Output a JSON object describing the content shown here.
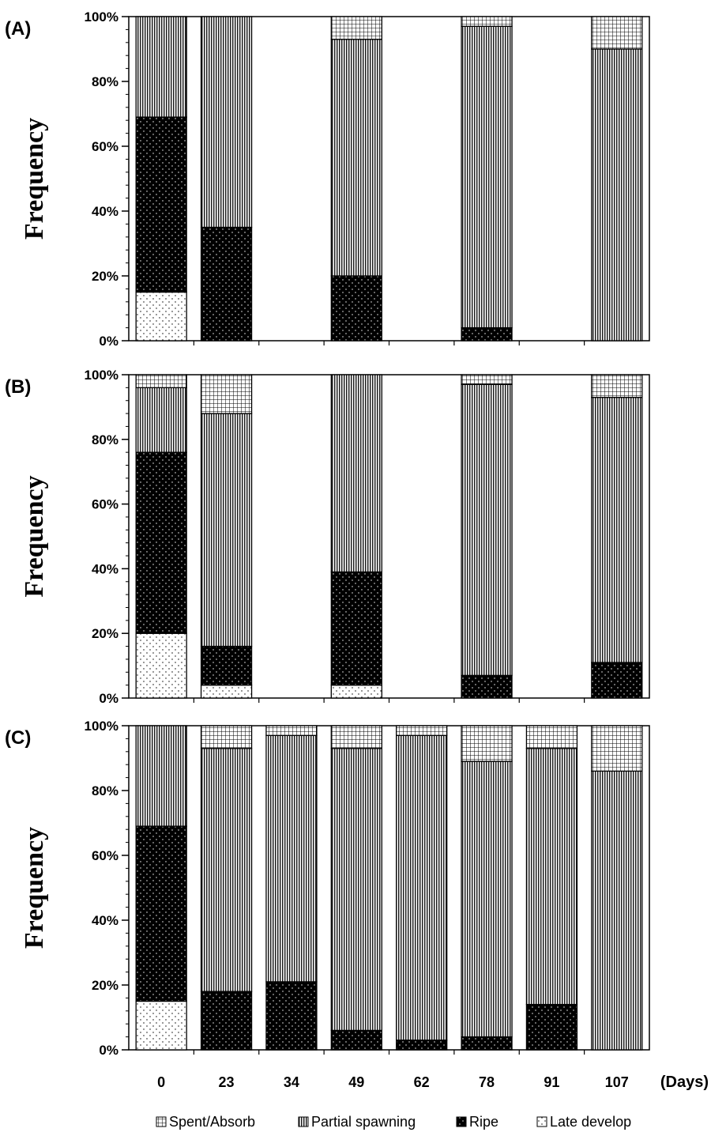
{
  "chart_data": {
    "type": "bar",
    "stacked": true,
    "percent_stacked": true,
    "categories": [
      "0",
      "23",
      "34",
      "49",
      "62",
      "78",
      "91",
      "107"
    ],
    "x_unit_label": "(Days)",
    "ylabel": "Frequency",
    "ylim": [
      0,
      100
    ],
    "y_ticks": [
      "0%",
      "20%",
      "40%",
      "60%",
      "80%",
      "100%"
    ],
    "legend": {
      "position": "bottom",
      "items": [
        {
          "key": "spent",
          "label": "Spent/Absorb",
          "pattern": "grid"
        },
        {
          "key": "partial",
          "label": "Partial spawning",
          "pattern": "vertical-lines"
        },
        {
          "key": "ripe",
          "label": "Ripe",
          "pattern": "black-dots"
        },
        {
          "key": "late",
          "label": "Late develop",
          "pattern": "dots"
        }
      ]
    },
    "panels": [
      {
        "label": "(A)",
        "bars": [
          {
            "day": "0",
            "late": 15,
            "ripe": 54,
            "partial": 31,
            "spent": 0
          },
          {
            "day": "23",
            "late": 0,
            "ripe": 35,
            "partial": 65,
            "spent": 0
          },
          {
            "day": "49",
            "late": 0,
            "ripe": 20,
            "partial": 73,
            "spent": 7
          },
          {
            "day": "78",
            "late": 0,
            "ripe": 4,
            "partial": 93,
            "spent": 3
          },
          {
            "day": "107",
            "late": 0,
            "ripe": 0,
            "partial": 90,
            "spent": 10
          }
        ]
      },
      {
        "label": "(B)",
        "bars": [
          {
            "day": "0",
            "late": 20,
            "ripe": 56,
            "partial": 20,
            "spent": 4
          },
          {
            "day": "23",
            "late": 4,
            "ripe": 12,
            "partial": 72,
            "spent": 12
          },
          {
            "day": "49",
            "late": 4,
            "ripe": 35,
            "partial": 61,
            "spent": 0
          },
          {
            "day": "78",
            "late": 0,
            "ripe": 7,
            "partial": 90,
            "spent": 3
          },
          {
            "day": "107",
            "late": 0,
            "ripe": 11,
            "partial": 82,
            "spent": 7
          }
        ]
      },
      {
        "label": "(C)",
        "bars": [
          {
            "day": "0",
            "late": 15,
            "ripe": 54,
            "partial": 31,
            "spent": 0
          },
          {
            "day": "23",
            "late": 0,
            "ripe": 18,
            "partial": 75,
            "spent": 7
          },
          {
            "day": "34",
            "late": 0,
            "ripe": 21,
            "partial": 76,
            "spent": 3
          },
          {
            "day": "49",
            "late": 0,
            "ripe": 6,
            "partial": 87,
            "spent": 7
          },
          {
            "day": "62",
            "late": 0,
            "ripe": 3,
            "partial": 94,
            "spent": 3
          },
          {
            "day": "78",
            "late": 0,
            "ripe": 4,
            "partial": 85,
            "spent": 11
          },
          {
            "day": "91",
            "late": 0,
            "ripe": 14,
            "partial": 79,
            "spent": 7
          },
          {
            "day": "107",
            "late": 0,
            "ripe": 0,
            "partial": 86,
            "spent": 14
          }
        ]
      }
    ]
  }
}
